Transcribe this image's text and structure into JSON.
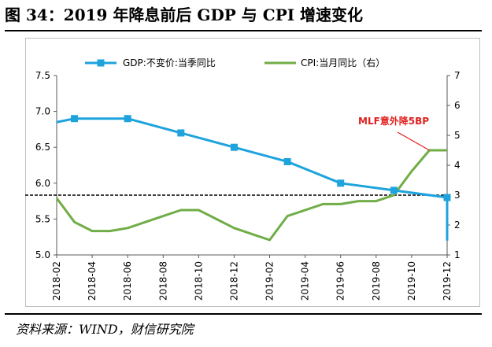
{
  "figure": {
    "title": "图 34：2019 年降息前后 GDP 与 CPI 增速变化",
    "source": "资料来源：WIND，财信研究院"
  },
  "chart_data": {
    "type": "line",
    "categories": [
      "2018-02",
      "2018-03",
      "2018-04",
      "2018-05",
      "2018-06",
      "2018-07",
      "2018-08",
      "2018-09",
      "2018-10",
      "2018-11",
      "2018-12",
      "2019-01",
      "2019-02",
      "2019-03",
      "2019-04",
      "2019-05",
      "2019-06",
      "2019-07",
      "2019-08",
      "2019-09",
      "2019-10",
      "2019-11",
      "2019-12"
    ],
    "xticks": [
      "2018-02",
      "2018-04",
      "2018-06",
      "2018-08",
      "2018-10",
      "2018-12",
      "2019-02",
      "2019-04",
      "2019-06",
      "2019-08",
      "2019-10",
      "2019-12"
    ],
    "series": [
      {
        "name": "GDP:不变价:当季同比",
        "axis": "left",
        "color": "#1ea3dc",
        "marker": "square",
        "points": [
          {
            "x": "2018-02",
            "y": 6.85
          },
          {
            "x": "2018-03",
            "y": 6.9
          },
          {
            "x": "2018-06",
            "y": 6.9
          },
          {
            "x": "2018-09",
            "y": 6.7
          },
          {
            "x": "2018-12",
            "y": 6.5
          },
          {
            "x": "2019-03",
            "y": 6.3
          },
          {
            "x": "2019-06",
            "y": 6.0
          },
          {
            "x": "2019-09",
            "y": 5.9
          },
          {
            "x": "2019-12",
            "y": 5.8
          },
          {
            "x": "2019-12",
            "y": 5.2
          }
        ],
        "marked": [
          "2018-03",
          "2018-06",
          "2018-09",
          "2018-12",
          "2019-03",
          "2019-06",
          "2019-09",
          "2019-12"
        ]
      },
      {
        "name": "CPI:当月同比（右）",
        "axis": "right",
        "color": "#70ad47",
        "points": [
          {
            "x": "2018-02",
            "y": 2.9
          },
          {
            "x": "2018-03",
            "y": 2.1
          },
          {
            "x": "2018-04",
            "y": 1.8
          },
          {
            "x": "2018-05",
            "y": 1.8
          },
          {
            "x": "2018-06",
            "y": 1.9
          },
          {
            "x": "2018-07",
            "y": 2.1
          },
          {
            "x": "2018-08",
            "y": 2.3
          },
          {
            "x": "2018-09",
            "y": 2.5
          },
          {
            "x": "2018-10",
            "y": 2.5
          },
          {
            "x": "2018-11",
            "y": 2.2
          },
          {
            "x": "2018-12",
            "y": 1.9
          },
          {
            "x": "2019-01",
            "y": 1.7
          },
          {
            "x": "2019-02",
            "y": 1.5
          },
          {
            "x": "2019-03",
            "y": 2.3
          },
          {
            "x": "2019-04",
            "y": 2.5
          },
          {
            "x": "2019-05",
            "y": 2.7
          },
          {
            "x": "2019-06",
            "y": 2.7
          },
          {
            "x": "2019-07",
            "y": 2.8
          },
          {
            "x": "2019-08",
            "y": 2.8
          },
          {
            "x": "2019-09",
            "y": 3.0
          },
          {
            "x": "2019-10",
            "y": 3.8
          },
          {
            "x": "2019-11",
            "y": 4.5
          },
          {
            "x": "2019-12",
            "y": 4.5
          }
        ]
      }
    ],
    "y_left": {
      "min": 5.0,
      "max": 7.5,
      "ticks": [
        "5.0",
        "5.5",
        "6.0",
        "6.5",
        "7.0",
        "7.5"
      ]
    },
    "y_right": {
      "min": 1,
      "max": 7,
      "ticks": [
        "1",
        "2",
        "3",
        "4",
        "5",
        "6",
        "7"
      ]
    },
    "reference_line": {
      "axis": "right",
      "y": 3,
      "style": "dashed",
      "color": "#000000"
    },
    "annotation": {
      "text": "MLF意外降5BP",
      "color": "#e02020",
      "points_to": {
        "x": "2019-11",
        "y": 4.5,
        "axis": "right"
      }
    },
    "legend_position": "top",
    "grid": false
  }
}
